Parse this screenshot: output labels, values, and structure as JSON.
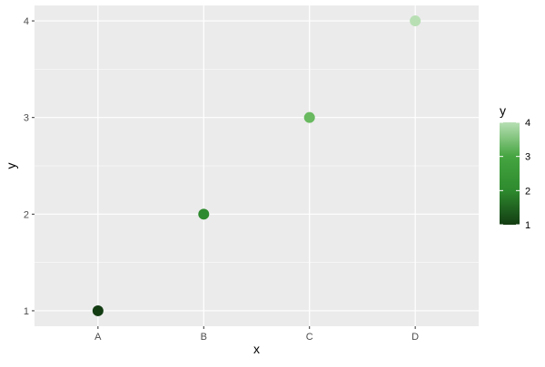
{
  "chart_data": {
    "type": "scatter",
    "title": "",
    "xlabel": "x",
    "ylabel": "y",
    "categories": [
      "A",
      "B",
      "C",
      "D"
    ],
    "values": [
      1,
      2,
      3,
      4
    ],
    "point_colors": [
      "#133c13",
      "#2e8a2e",
      "#68b95f",
      "#b8dfb4"
    ],
    "ylim": [
      0.84,
      4.16
    ],
    "yticks": [
      1,
      2,
      3,
      4
    ],
    "grid": true,
    "panel_background": "#ebebeb",
    "legend": {
      "title": "y",
      "placement": "right",
      "type": "colorbar",
      "range": [
        1,
        4
      ],
      "ticks": [
        1,
        2,
        3,
        4
      ],
      "colors": [
        "#133c13",
        "#2e8a2e",
        "#45a540",
        "#b8dfb4"
      ]
    }
  }
}
